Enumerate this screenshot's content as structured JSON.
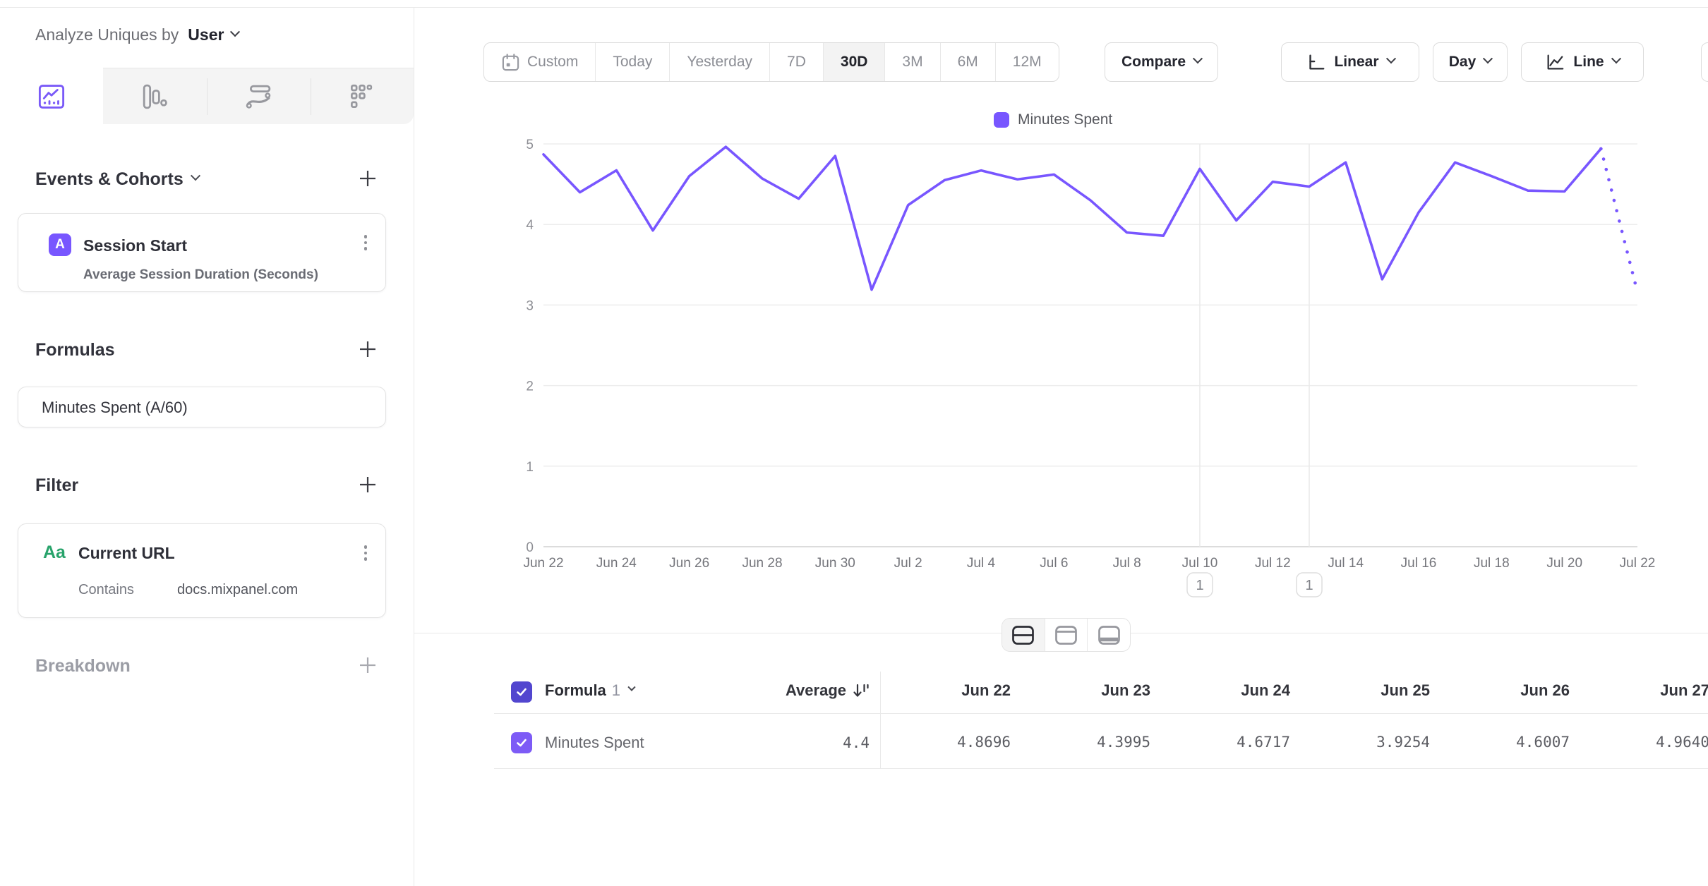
{
  "header": {
    "analyze_label": "Analyze Uniques by",
    "analyze_value": "User"
  },
  "sidebar": {
    "tabs": [
      {
        "name": "insights-line-tab",
        "active": true
      },
      {
        "name": "bar-chart-tab",
        "active": false
      },
      {
        "name": "flow-tab",
        "active": false
      },
      {
        "name": "metric-grid-tab",
        "active": false
      }
    ],
    "events_section": {
      "title": "Events & Cohorts"
    },
    "event_card": {
      "badge": "A",
      "title": "Session Start",
      "subtitle": "Average Session Duration (Seconds)"
    },
    "formulas_section": {
      "title": "Formulas"
    },
    "formula_card": {
      "title": "Minutes Spent (A/60)"
    },
    "filter_section": {
      "title": "Filter"
    },
    "filter_card": {
      "badge": "Aa",
      "title": "Current URL",
      "operator": "Contains",
      "value": "docs.mixpanel.com"
    },
    "breakdown_section": {
      "title": "Breakdown"
    }
  },
  "toolbar": {
    "ranges": [
      {
        "label": "Custom"
      },
      {
        "label": "Today"
      },
      {
        "label": "Yesterday"
      },
      {
        "label": "7D"
      },
      {
        "label": "30D",
        "selected": true
      },
      {
        "label": "3M"
      },
      {
        "label": "6M"
      },
      {
        "label": "12M"
      }
    ],
    "compare_label": "Compare",
    "scale_label": "Linear",
    "interval_label": "Day",
    "chart_type_label": "Line"
  },
  "legend": {
    "series": "Minutes Spent",
    "color": "#7856ff"
  },
  "chart_data": {
    "type": "line",
    "series_name": "Minutes Spent",
    "x": [
      "Jun 22",
      "Jun 23",
      "Jun 24",
      "Jun 25",
      "Jun 26",
      "Jun 27",
      "Jun 28",
      "Jun 29",
      "Jun 30",
      "Jul 1",
      "Jul 2",
      "Jul 3",
      "Jul 4",
      "Jul 5",
      "Jul 6",
      "Jul 7",
      "Jul 8",
      "Jul 9",
      "Jul 10",
      "Jul 11",
      "Jul 12",
      "Jul 13",
      "Jul 14",
      "Jul 15",
      "Jul 16",
      "Jul 17",
      "Jul 18",
      "Jul 19",
      "Jul 20",
      "Jul 21",
      "Jul 22"
    ],
    "values": [
      4.8696,
      4.3995,
      4.6717,
      3.9254,
      4.6007,
      4.964,
      4.57,
      4.32,
      4.85,
      3.19,
      4.24,
      4.55,
      4.67,
      4.56,
      4.62,
      4.3,
      3.9,
      3.86,
      4.69,
      4.05,
      4.53,
      4.47,
      4.77,
      3.32,
      4.15,
      4.77,
      4.6,
      4.42,
      4.41,
      4.94,
      3.16
    ],
    "incomplete_last_point": true,
    "ylim": [
      0,
      5
    ],
    "yticks": [
      0,
      1,
      2,
      3,
      4,
      5
    ],
    "x_tick_every": 2,
    "grid": true,
    "legend_position": "top",
    "line_color": "#7856ff",
    "annotations": [
      {
        "day_index": 18,
        "x": "Jul 10",
        "count": "1"
      },
      {
        "day_index": 21,
        "x": "Jul 13",
        "count": "1"
      }
    ]
  },
  "table": {
    "group_label": "Formula",
    "group_index": "1",
    "average_label": "Average",
    "columns": [
      "Jun 22",
      "Jun 23",
      "Jun 24",
      "Jun 25",
      "Jun 26",
      "Jun 27"
    ],
    "row": {
      "label": "Minutes Spent",
      "average": "4.4",
      "values": [
        "4.8696",
        "4.3995",
        "4.6717",
        "3.9254",
        "4.6007",
        "4.9640"
      ]
    }
  }
}
